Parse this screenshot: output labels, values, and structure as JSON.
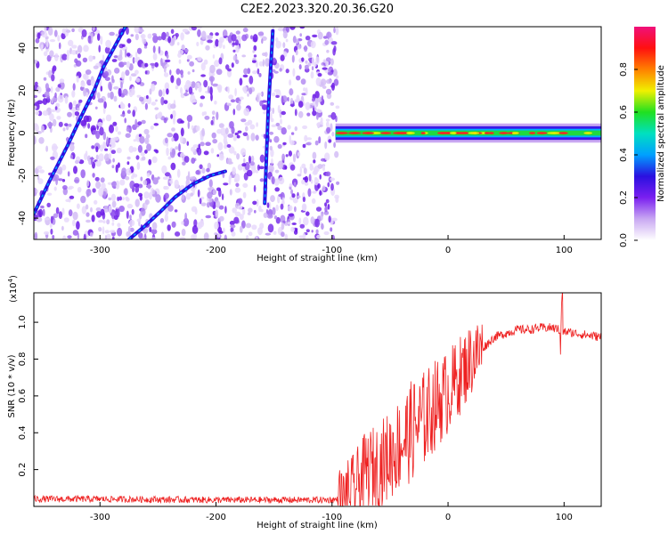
{
  "figure": {
    "title": "C2E2.2023.320.20.36.G20"
  },
  "chart_data": [
    {
      "type": "heatmap",
      "title": "C2E2.2023.320.20.36.G20",
      "xlabel": "Height of straight line (km)",
      "ylabel": "Frequency (Hz)",
      "xlim": [
        -357,
        132
      ],
      "ylim": [
        -50,
        50
      ],
      "x_ticks": [
        -300,
        -200,
        -100,
        0,
        100
      ],
      "y_ticks": [
        -40,
        -20,
        0,
        20,
        40
      ],
      "colorbar": {
        "label": "Normalized spectral amplitude",
        "range": [
          0,
          1
        ],
        "ticks": [
          "0.0",
          "0.2",
          "0.4",
          "0.6",
          "0.8"
        ],
        "colors": [
          "#ffffff",
          "#c9a8f2",
          "#7a1ff0",
          "#2a10e0",
          "#00a0ff",
          "#00e0c0",
          "#20e020",
          "#f0f000",
          "#ff8000",
          "#ff1010",
          "#f0107a"
        ]
      },
      "features": {
        "noise_region_x": [
          -357,
          -95
        ],
        "carrier_band_x": [
          -97,
          132
        ],
        "carrier_center_hz": 0,
        "doppler_traces": [
          {
            "x": [
              -357,
              -343,
              -328,
              -316,
              -305,
              -297,
              -288,
              -278
            ],
            "y": [
              -38,
              -22,
              -6,
              8,
              20,
              31,
              40,
              50
            ]
          },
          {
            "x": [
              -275,
              -262,
              -248,
              -235,
              -220,
              -205,
              -192
            ],
            "y": [
              -50,
              -44,
              -37,
              -30,
              -24,
              -20,
              -18
            ]
          },
          {
            "x": [
              -158,
              -155,
              -151
            ],
            "y": [
              -33,
              10,
              48
            ]
          }
        ]
      }
    },
    {
      "type": "line",
      "title": "",
      "xlabel": "Height of straight line (km)",
      "ylabel": "SNR (10 * v/v)",
      "y_scale_label": "(x10",
      "y_scale_exponent": "4",
      "y_scale_close": ")",
      "xlim": [
        -357,
        132
      ],
      "ylim": [
        0,
        1.16
      ],
      "x_ticks": [
        -300,
        -200,
        -100,
        0,
        100
      ],
      "y_ticks": [
        "0.2",
        "0.4",
        "0.6",
        "0.8",
        "1.0"
      ],
      "series": [
        {
          "color": "#ee2020",
          "x": [
            -357,
            -300,
            -200,
            -120,
            -100,
            -90,
            -80,
            -70,
            -60,
            -50,
            -40,
            -30,
            -20,
            -10,
            0,
            10,
            20,
            30,
            40,
            50,
            60,
            70,
            80,
            90,
            95,
            100,
            110,
            120,
            132
          ],
          "y": [
            0.04,
            0.04,
            0.035,
            0.035,
            0.035,
            0.04,
            0.1,
            0.2,
            0.22,
            0.28,
            0.35,
            0.42,
            0.48,
            0.56,
            0.62,
            0.71,
            0.8,
            0.86,
            0.92,
            0.94,
            0.96,
            0.96,
            0.97,
            0.97,
            0.96,
            0.95,
            0.94,
            0.93,
            0.92
          ]
        }
      ]
    }
  ]
}
